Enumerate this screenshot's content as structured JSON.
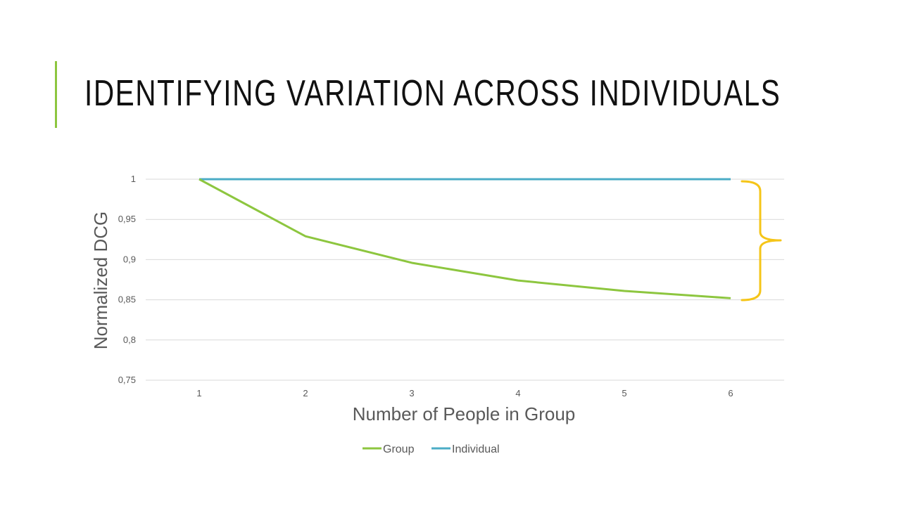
{
  "slide": {
    "title": "IDENTIFYING VARIATION ACROSS INDIVIDUALS",
    "accent_color": "#8dc63f"
  },
  "chart_data": {
    "type": "line",
    "title": "",
    "xlabel": "Number of People in Group",
    "ylabel": "Normalized DCG",
    "categories": [
      "1",
      "2",
      "3",
      "4",
      "5",
      "6"
    ],
    "y_ticks": [
      "0,75",
      "0,8",
      "0,85",
      "0,9",
      "0,95",
      "1"
    ],
    "ylim": [
      0.75,
      1
    ],
    "grid": true,
    "legend_position": "bottom",
    "series": [
      {
        "name": "Group",
        "color": "#8dc63f",
        "values": [
          1.0,
          0.929,
          0.896,
          0.874,
          0.861,
          0.852
        ]
      },
      {
        "name": "Individual",
        "color": "#4bacc6",
        "values": [
          1,
          1,
          1,
          1,
          1,
          1
        ]
      }
    ],
    "annotation": {
      "type": "brace",
      "color": "#f5c518"
    }
  }
}
